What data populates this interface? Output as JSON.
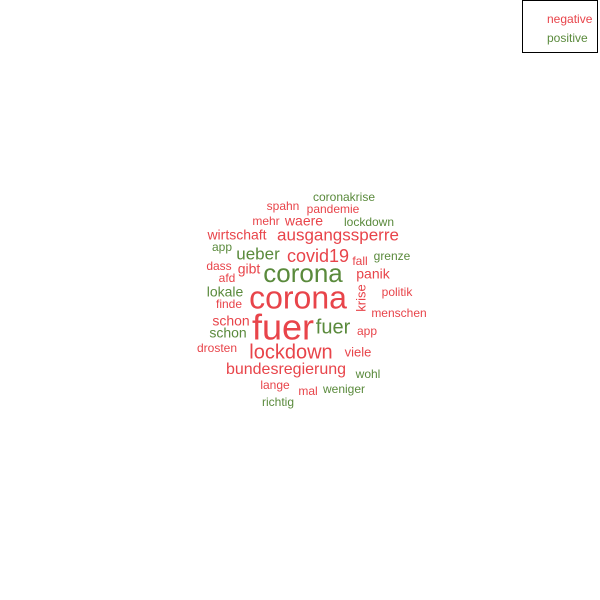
{
  "colors": {
    "negative": "#e8444a",
    "positive": "#5a8a3c"
  },
  "legend": {
    "negative_label": "negative",
    "positive_label": "positive"
  },
  "chart_data": {
    "type": "wordcloud",
    "legend_position": "top-right",
    "words": [
      {
        "text": "coronakrise",
        "sentiment": "positive",
        "weight": 12
      },
      {
        "text": "spahn",
        "sentiment": "negative",
        "weight": 12
      },
      {
        "text": "pandemie",
        "sentiment": "negative",
        "weight": 12
      },
      {
        "text": "mehr",
        "sentiment": "negative",
        "weight": 12
      },
      {
        "text": "waere",
        "sentiment": "negative",
        "weight": 14
      },
      {
        "text": "lockdown",
        "sentiment": "positive",
        "weight": 12
      },
      {
        "text": "wirtschaft",
        "sentiment": "negative",
        "weight": 14
      },
      {
        "text": "ausgangssperre",
        "sentiment": "negative",
        "weight": 17
      },
      {
        "text": "app",
        "sentiment": "positive",
        "weight": 12
      },
      {
        "text": "ueber",
        "sentiment": "positive",
        "weight": 17
      },
      {
        "text": "covid19",
        "sentiment": "negative",
        "weight": 18
      },
      {
        "text": "grenze",
        "sentiment": "positive",
        "weight": 12
      },
      {
        "text": "dass",
        "sentiment": "negative",
        "weight": 12
      },
      {
        "text": "gibt",
        "sentiment": "negative",
        "weight": 14
      },
      {
        "text": "corona",
        "sentiment": "positive",
        "weight": 26
      },
      {
        "text": "fall",
        "sentiment": "negative",
        "weight": 12
      },
      {
        "text": "panik",
        "sentiment": "negative",
        "weight": 14
      },
      {
        "text": "afd",
        "sentiment": "negative",
        "weight": 12
      },
      {
        "text": "lokale",
        "sentiment": "positive",
        "weight": 14
      },
      {
        "text": "corona",
        "sentiment": "negative",
        "weight": 32
      },
      {
        "text": "krise",
        "sentiment": "negative",
        "weight": 13,
        "rotate": -90
      },
      {
        "text": "politik",
        "sentiment": "negative",
        "weight": 12
      },
      {
        "text": "finde",
        "sentiment": "negative",
        "weight": 12
      },
      {
        "text": "menschen",
        "sentiment": "negative",
        "weight": 12
      },
      {
        "text": "schon",
        "sentiment": "negative",
        "weight": 14
      },
      {
        "text": "fuer",
        "sentiment": "negative",
        "weight": 36
      },
      {
        "text": "fuer",
        "sentiment": "positive",
        "weight": 20
      },
      {
        "text": "schon",
        "sentiment": "positive",
        "weight": 14
      },
      {
        "text": "app",
        "sentiment": "negative",
        "weight": 12
      },
      {
        "text": "drosten",
        "sentiment": "negative",
        "weight": 12
      },
      {
        "text": "lockdown",
        "sentiment": "negative",
        "weight": 20
      },
      {
        "text": "viele",
        "sentiment": "negative",
        "weight": 13
      },
      {
        "text": "bundesregierung",
        "sentiment": "negative",
        "weight": 16
      },
      {
        "text": "wohl",
        "sentiment": "positive",
        "weight": 12
      },
      {
        "text": "lange",
        "sentiment": "negative",
        "weight": 12
      },
      {
        "text": "mal",
        "sentiment": "negative",
        "weight": 12
      },
      {
        "text": "weniger",
        "sentiment": "positive",
        "weight": 12
      },
      {
        "text": "richtig",
        "sentiment": "positive",
        "weight": 12
      }
    ]
  }
}
